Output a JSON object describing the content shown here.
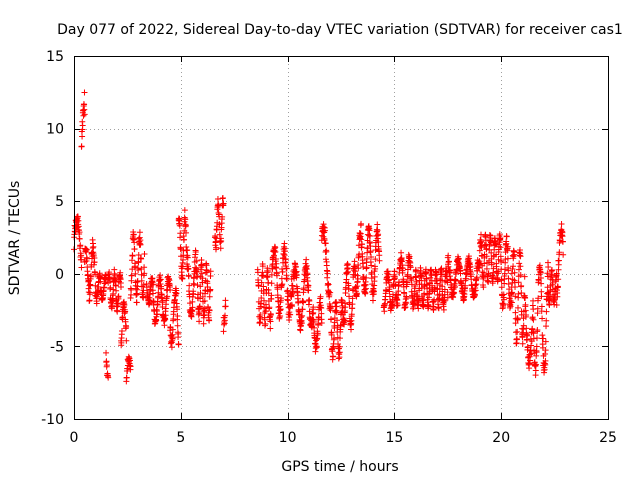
{
  "chart_data": {
    "type": "scatter",
    "title": "Day 077 of 2022, Sidereal Day-to-day VTEC variation (SDTVAR) for receiver cas1",
    "xlabel": "GPS time / hours",
    "ylabel": "SDTVAR / TECUs",
    "xlim": [
      0,
      25
    ],
    "ylim": [
      -10,
      15
    ],
    "xticks": [
      0,
      5,
      10,
      15,
      20,
      25
    ],
    "yticks": [
      -10,
      -5,
      0,
      5,
      10,
      15
    ],
    "grid": true,
    "marker": "plus",
    "color": "#ff0000",
    "segments": [
      {
        "t0": 0.0,
        "t1": 0.35,
        "mean": 2.2,
        "amp": 1.6,
        "noise": 0.8
      },
      {
        "t0": 0.35,
        "t1": 0.5,
        "mean": 8.0,
        "amp": 3.5,
        "noise": 1.2
      },
      {
        "t0": 0.5,
        "t1": 1.0,
        "mean": 0.2,
        "amp": 1.5,
        "noise": 0.9
      },
      {
        "t0": 1.0,
        "t1": 1.5,
        "mean": -1.0,
        "amp": 0.8,
        "noise": 0.5
      },
      {
        "t0": 1.5,
        "t1": 1.6,
        "mean": -7.0,
        "amp": 1.2,
        "noise": 0.8
      },
      {
        "t0": 1.6,
        "t1": 2.2,
        "mean": -1.2,
        "amp": 1.2,
        "noise": 0.6
      },
      {
        "t0": 2.2,
        "t1": 2.45,
        "mean": -3.5,
        "amp": 1.5,
        "noise": 0.8
      },
      {
        "t0": 2.45,
        "t1": 2.65,
        "mean": -7.0,
        "amp": 1.3,
        "noise": 0.7
      },
      {
        "t0": 2.65,
        "t1": 3.3,
        "mean": 0.5,
        "amp": 2.0,
        "noise": 0.8
      },
      {
        "t0": 3.4,
        "t1": 3.7,
        "mean": -1.2,
        "amp": 0.8,
        "noise": 0.5
      },
      {
        "t0": 3.7,
        "t1": 4.5,
        "mean": -1.8,
        "amp": 1.5,
        "noise": 0.7
      },
      {
        "t0": 4.5,
        "t1": 4.9,
        "mean": -3.0,
        "amp": 1.8,
        "noise": 0.8
      },
      {
        "t0": 4.9,
        "t1": 5.3,
        "mean": 1.8,
        "amp": 2.0,
        "noise": 0.8
      },
      {
        "t0": 5.3,
        "t1": 5.7,
        "mean": -0.5,
        "amp": 2.2,
        "noise": 0.9
      },
      {
        "t0": 5.7,
        "t1": 6.4,
        "mean": -1.2,
        "amp": 1.8,
        "noise": 0.9
      },
      {
        "t0": 6.6,
        "t1": 7.0,
        "mean": 3.5,
        "amp": 1.5,
        "noise": 0.7
      },
      {
        "t0": 7.0,
        "t1": 7.1,
        "mean": -2.0,
        "amp": 1.5,
        "noise": 0.8
      },
      {
        "t0": 8.6,
        "t1": 9.3,
        "mean": -1.5,
        "amp": 1.8,
        "noise": 0.8
      },
      {
        "t0": 9.3,
        "t1": 10.2,
        "mean": -0.5,
        "amp": 2.2,
        "noise": 0.9
      },
      {
        "t0": 10.2,
        "t1": 11.2,
        "mean": -1.5,
        "amp": 2.0,
        "noise": 0.8
      },
      {
        "t0": 11.2,
        "t1": 11.6,
        "mean": -3.5,
        "amp": 1.5,
        "noise": 0.7
      },
      {
        "t0": 11.6,
        "t1": 12.0,
        "mean": 0.5,
        "amp": 2.5,
        "noise": 0.9
      },
      {
        "t0": 12.0,
        "t1": 12.6,
        "mean": -3.8,
        "amp": 1.8,
        "noise": 0.8
      },
      {
        "t0": 12.6,
        "t1": 13.2,
        "mean": -1.5,
        "amp": 2.0,
        "noise": 0.8
      },
      {
        "t0": 13.2,
        "t1": 14.3,
        "mean": 0.8,
        "amp": 2.2,
        "noise": 0.9
      },
      {
        "t0": 14.5,
        "t1": 15.0,
        "mean": -1.2,
        "amp": 1.2,
        "noise": 0.6
      },
      {
        "t0": 15.0,
        "t1": 16.0,
        "mean": -0.5,
        "amp": 1.6,
        "noise": 0.7
      },
      {
        "t0": 16.0,
        "t1": 17.5,
        "mean": -1.0,
        "amp": 1.2,
        "noise": 0.6
      },
      {
        "t0": 17.5,
        "t1": 19.0,
        "mean": -0.3,
        "amp": 1.2,
        "noise": 0.6
      },
      {
        "t0": 19.0,
        "t1": 20.0,
        "mean": 1.0,
        "amp": 1.5,
        "noise": 0.7
      },
      {
        "t0": 20.0,
        "t1": 20.5,
        "mean": 0.0,
        "amp": 2.2,
        "noise": 0.9
      },
      {
        "t0": 20.5,
        "t1": 21.1,
        "mean": -1.5,
        "amp": 3.0,
        "noise": 1.2
      },
      {
        "t0": 21.1,
        "t1": 21.5,
        "mean": -3.5,
        "amp": 2.5,
        "noise": 1.0
      },
      {
        "t0": 21.5,
        "t1": 22.2,
        "mean": -3.0,
        "amp": 3.5,
        "noise": 1.2
      },
      {
        "t0": 22.2,
        "t1": 22.6,
        "mean": -1.0,
        "amp": 1.0,
        "noise": 0.5
      },
      {
        "t0": 22.6,
        "t1": 22.9,
        "mean": 0.5,
        "amp": 2.5,
        "noise": 1.0
      }
    ]
  }
}
